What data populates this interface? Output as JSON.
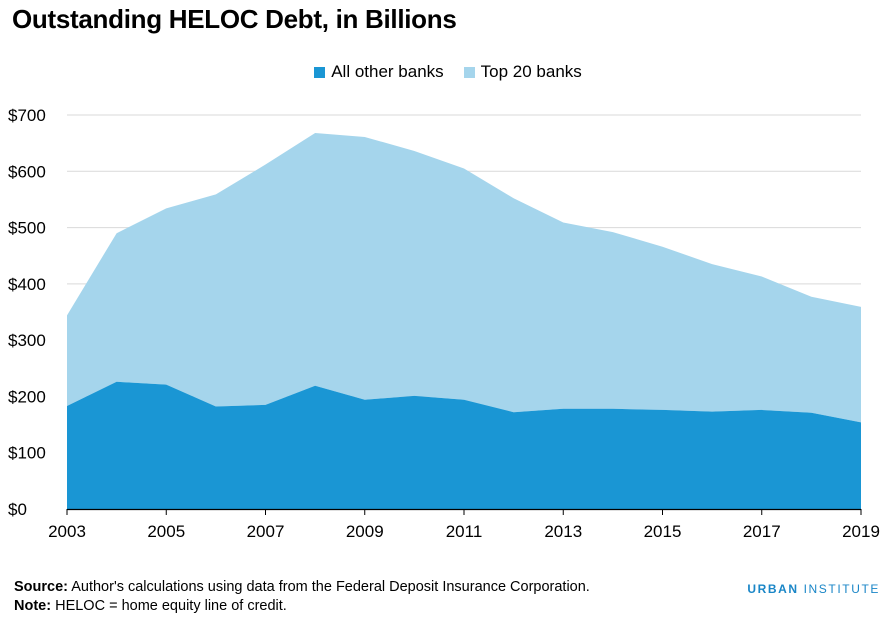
{
  "chart_data": {
    "type": "area",
    "stacked": true,
    "title": "Outstanding HELOC Debt, in Billions",
    "x": [
      2003,
      2004,
      2005,
      2006,
      2007,
      2008,
      2009,
      2010,
      2011,
      2012,
      2013,
      2014,
      2015,
      2016,
      2017,
      2018,
      2019
    ],
    "x_ticks": [
      "2003",
      "2005",
      "2007",
      "2009",
      "2011",
      "2013",
      "2015",
      "2017",
      "2019"
    ],
    "y_ticks": [
      "$0",
      "$100",
      "$200",
      "$300",
      "$400",
      "$500",
      "$600",
      "$700"
    ],
    "ylim": [
      0,
      700
    ],
    "grid": true,
    "legend_position": "top-center",
    "series": [
      {
        "name": "All other banks",
        "color": "#1a96d4",
        "values": [
          183,
          226,
          221,
          182,
          185,
          219,
          194,
          201,
          194,
          172,
          178,
          178,
          176,
          173,
          176,
          171,
          154
        ]
      },
      {
        "name": "Top 20 banks",
        "color": "#a5d5ec",
        "values": [
          161,
          264,
          313,
          377,
          427,
          449,
          467,
          435,
          411,
          380,
          331,
          314,
          290,
          262,
          237,
          206,
          205
        ]
      }
    ]
  },
  "title": "Outstanding HELOC Debt, in Billions",
  "footer": {
    "source_label": "Source:",
    "source_text": " Author's calculations using data from the Federal Deposit Insurance Corporation.",
    "note_label": "Note:",
    "note_text": " HELOC = home equity line of credit.",
    "brand_first": "URBAN",
    "brand_second": "INSTITUTE"
  }
}
